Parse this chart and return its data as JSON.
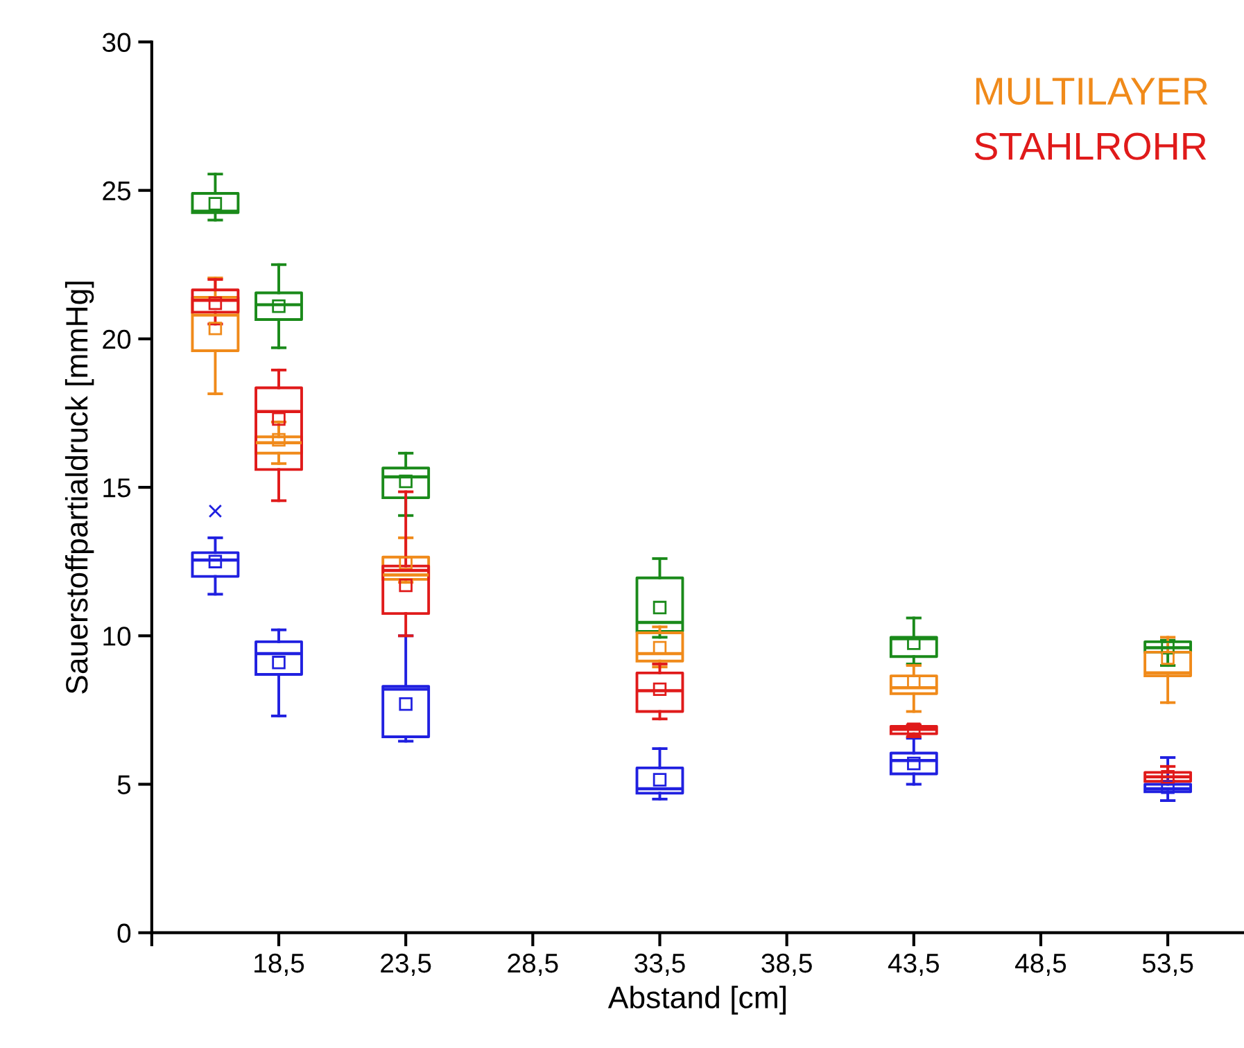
{
  "chart_data": {
    "type": "box",
    "xlabel": "Abstand [cm]",
    "ylabel": "Sauerstoffpartialdruck [mmHg]",
    "xlim": [
      13.5,
      56.5
    ],
    "xticks": [
      {
        "value": 13.5,
        "label": null
      },
      {
        "value": 18.5,
        "label": "18,5"
      },
      {
        "value": 23.5,
        "label": "23,5"
      },
      {
        "value": 28.5,
        "label": "28,5"
      },
      {
        "value": 33.5,
        "label": "33,5"
      },
      {
        "value": 38.5,
        "label": "38,5"
      },
      {
        "value": 43.5,
        "label": "43,5"
      },
      {
        "value": 48.5,
        "label": "48,5"
      },
      {
        "value": 53.5,
        "label": "53,5"
      }
    ],
    "ylim": [
      0,
      30
    ],
    "yticks": [
      0,
      5,
      10,
      15,
      20,
      25,
      30
    ],
    "grid": false,
    "legend": "top right",
    "series": [
      {
        "color": "#2020e0",
        "x": [
          16,
          18.5,
          23.5,
          33.5,
          43.5,
          53.5
        ],
        "boxes": [
          {
            "low": 11.4,
            "q1": 12.0,
            "median": 12.55,
            "q3": 12.8,
            "high": 13.3,
            "mean": 12.5,
            "outliers": [
              14.2
            ]
          },
          {
            "low": 7.3,
            "q1": 8.7,
            "median": 9.4,
            "q3": 9.8,
            "high": 10.2,
            "mean": 9.1
          },
          {
            "low": 6.45,
            "q1": 6.6,
            "median": 8.2,
            "q3": 8.3,
            "high": 10.0,
            "mean": 7.7
          },
          {
            "low": 4.5,
            "q1": 4.7,
            "median": 4.85,
            "q3": 5.55,
            "high": 6.2,
            "mean": 5.15
          },
          {
            "low": 5.0,
            "q1": 5.35,
            "median": 5.8,
            "q3": 6.05,
            "high": 6.55,
            "mean": 5.7
          },
          {
            "low": 4.45,
            "q1": 4.75,
            "median": 4.85,
            "q3": 5.0,
            "high": 5.9,
            "mean": 4.9
          }
        ]
      },
      {
        "color": "#1a8a1a",
        "x": [
          16,
          18.5,
          23.5,
          33.5,
          43.5,
          53.5
        ],
        "boxes": [
          {
            "low": 24.0,
            "q1": 24.25,
            "median": 24.3,
            "q3": 24.9,
            "high": 25.55,
            "mean": 24.55
          },
          {
            "low": 19.7,
            "q1": 20.65,
            "median": 21.15,
            "q3": 21.55,
            "high": 22.5,
            "mean": 21.1
          },
          {
            "low": 14.05,
            "q1": 14.65,
            "median": 15.35,
            "q3": 15.65,
            "high": 16.15,
            "mean": 15.2
          },
          {
            "low": 9.95,
            "q1": 10.15,
            "median": 10.45,
            "q3": 11.95,
            "high": 12.6,
            "mean": 10.95
          },
          {
            "low": 9.05,
            "q1": 9.3,
            "median": 9.9,
            "q3": 9.95,
            "high": 10.6,
            "mean": 9.75
          },
          {
            "low": 9.0,
            "q1": 9.45,
            "median": 9.6,
            "q3": 9.8,
            "high": 9.85,
            "mean": 9.6
          }
        ]
      },
      {
        "name": "MULTILAYER",
        "color": "#f08a1a",
        "x": [
          16,
          18.5,
          23.5,
          33.5,
          43.5,
          53.5
        ],
        "boxes": [
          {
            "low": 18.15,
            "q1": 19.6,
            "median": 20.8,
            "q3": 21.4,
            "high": 22.05,
            "mean": 20.35
          },
          {
            "low": 15.8,
            "q1": 16.15,
            "median": 16.5,
            "q3": 16.7,
            "high": 17.2,
            "mean": 16.6
          },
          {
            "low": 11.8,
            "q1": 11.9,
            "median": 12.05,
            "q3": 12.65,
            "high": 13.3,
            "mean": 12.45
          },
          {
            "low": 8.95,
            "q1": 9.15,
            "median": 9.4,
            "q3": 10.1,
            "high": 10.3,
            "mean": 9.6
          },
          {
            "low": 7.45,
            "q1": 8.05,
            "median": 8.25,
            "q3": 8.65,
            "high": 9.0,
            "mean": 8.45
          },
          {
            "low": 7.75,
            "q1": 8.65,
            "median": 8.75,
            "q3": 9.45,
            "high": 9.95,
            "mean": 9.25
          }
        ]
      },
      {
        "name": "STAHLROHR",
        "color": "#e01a1a",
        "x": [
          16,
          18.5,
          23.5,
          33.5,
          43.5,
          53.5
        ],
        "boxes": [
          {
            "low": 20.5,
            "q1": 20.9,
            "median": 21.3,
            "q3": 21.65,
            "high": 22.0,
            "mean": 21.2
          },
          {
            "low": 14.55,
            "q1": 15.6,
            "median": 17.55,
            "q3": 18.35,
            "high": 18.95,
            "mean": 17.3
          },
          {
            "low": 10.0,
            "q1": 10.75,
            "median": 12.2,
            "q3": 12.35,
            "high": 14.85,
            "mean": 11.7
          },
          {
            "low": 7.2,
            "q1": 7.45,
            "median": 8.15,
            "q3": 8.75,
            "high": 9.05,
            "mean": 8.2
          },
          {
            "low": 6.6,
            "q1": 6.7,
            "median": 6.85,
            "q3": 6.95,
            "high": 7.0,
            "mean": 6.85
          },
          {
            "low": 5.1,
            "q1": 5.1,
            "median": 5.25,
            "q3": 5.4,
            "high": 5.6,
            "mean": 5.25
          }
        ]
      }
    ]
  }
}
